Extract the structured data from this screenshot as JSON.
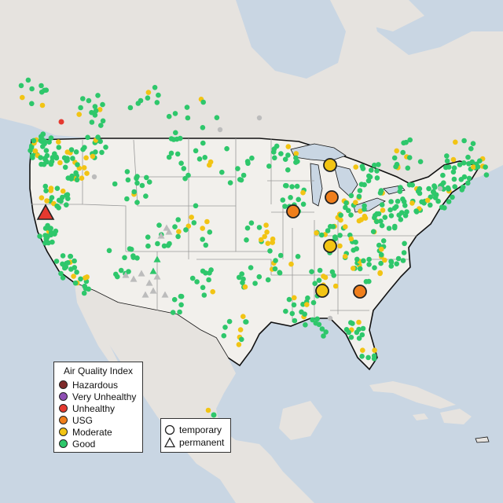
{
  "legend": {
    "title": "Air Quality Index",
    "categories": [
      {
        "label": "Hazardous",
        "color": "#7e2a2a"
      },
      {
        "label": "Very Unhealthy",
        "color": "#8e4fb3"
      },
      {
        "label": "Unhealthy",
        "color": "#e5392f"
      },
      {
        "label": "USG",
        "color": "#f07f1c"
      },
      {
        "label": "Moderate",
        "color": "#f2c414"
      },
      {
        "label": "Good",
        "color": "#2ec76b"
      }
    ],
    "monitor_types": [
      {
        "label": "temporary",
        "symbol": "circle"
      },
      {
        "label": "permanent",
        "symbol": "triangle"
      }
    ]
  },
  "map_style": {
    "water": "#c9d6e3",
    "land": "#e6e3df",
    "us_land": "#f2f0ec",
    "border": "#111111",
    "state_lines": "#9a9a9a"
  }
}
